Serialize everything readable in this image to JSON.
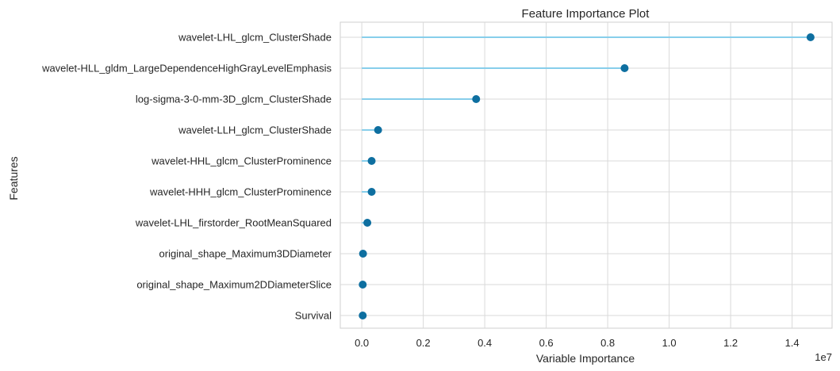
{
  "chart_data": {
    "type": "lollipop",
    "title": "Feature Importance Plot",
    "xlabel": "Variable Importance",
    "ylabel": "Features",
    "x_exponent_label": "1e7",
    "x_scale_factor": 10000000,
    "xlim": [
      -0.07,
      1.53
    ],
    "x_ticks": [
      0.0,
      0.2,
      0.4,
      0.6,
      0.8,
      1.0,
      1.2,
      1.4
    ],
    "x_tick_labels": [
      "0.0",
      "0.2",
      "0.4",
      "0.6",
      "0.8",
      "1.0",
      "1.2",
      "1.4"
    ],
    "grid": true,
    "categories": [
      "wavelet-LHL_glcm_ClusterShade",
      "wavelet-HLL_gldm_LargeDependenceHighGrayLevelEmphasis",
      "log-sigma-3-0-mm-3D_glcm_ClusterShade",
      "wavelet-LLH_glcm_ClusterShade",
      "wavelet-HHL_glcm_ClusterProminence",
      "wavelet-HHH_glcm_ClusterProminence",
      "wavelet-LHL_firstorder_RootMeanSquared",
      "original_shape_Maximum3DDiameter",
      "original_shape_Maximum2DDiameterSlice",
      "Survival"
    ],
    "values": [
      14600000,
      8550000,
      3720000,
      530000,
      320000,
      320000,
      180000,
      40000,
      30000,
      30000
    ],
    "stem_color": "#87ceeb",
    "marker_color": "#0e6fa0",
    "grid_color": "#d9d9d9"
  }
}
